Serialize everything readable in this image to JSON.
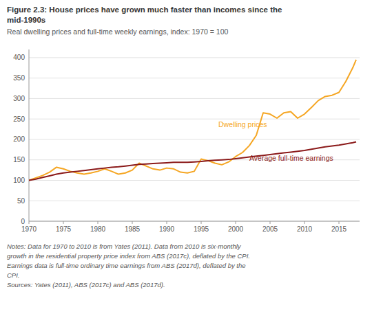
{
  "chart_data": {
    "type": "line",
    "title": [
      "Figure 2.3: House prices have grown much faster than incomes since the",
      "mid-1990s"
    ],
    "subtitle": "Real dwelling prices and full-time weekly earnings, index: 1970 = 100",
    "notes": [
      "Notes: Data for 1970 to 2010 is from Yates (2011). Data from 2010 is six-monthly",
      "growth in the residential property price index from ABS (2017c), deflated by the CPI.",
      "Earnings data is full-time ordinary time earnings from ABS (2017d), deflated by the",
      "CPI.",
      "Sources: Yates (2011), ABS (2017c) and ABS (2017d)."
    ],
    "x": [
      1970,
      1971,
      1972,
      1973,
      1974,
      1975,
      1976,
      1977,
      1978,
      1979,
      1980,
      1981,
      1982,
      1983,
      1984,
      1985,
      1986,
      1987,
      1988,
      1989,
      1990,
      1991,
      1992,
      1993,
      1994,
      1995,
      1996,
      1997,
      1998,
      1999,
      2000,
      2001,
      2002,
      2003,
      2004,
      2005,
      2006,
      2007,
      2008,
      2009,
      2010,
      2011,
      2012,
      2013,
      2014,
      2015,
      2016,
      2017,
      2017.5
    ],
    "series": [
      {
        "color": "#F5A623",
        "values": [
          100,
          106,
          112,
          120,
          132,
          128,
          122,
          118,
          115,
          118,
          122,
          128,
          122,
          115,
          118,
          125,
          142,
          135,
          128,
          125,
          130,
          128,
          120,
          118,
          122,
          152,
          148,
          142,
          138,
          145,
          158,
          168,
          185,
          210,
          265,
          262,
          252,
          265,
          268,
          252,
          262,
          278,
          295,
          305,
          308,
          315,
          342,
          375,
          395
        ]
      },
      {
        "color": "#8B1A1A",
        "values": [
          100,
          103,
          107,
          111,
          115,
          118,
          120,
          122,
          124,
          126,
          128,
          130,
          132,
          133,
          135,
          137,
          139,
          140,
          141,
          142,
          143,
          144,
          144,
          144,
          145,
          146,
          148,
          149,
          150,
          151,
          153,
          155,
          157,
          159,
          161,
          163,
          165,
          167,
          169,
          171,
          173,
          176,
          179,
          182,
          184,
          186,
          189,
          192,
          194
        ]
      }
    ],
    "annotations": [
      {
        "text": "Dwelling prices",
        "x": 1997.5,
        "y": 230,
        "color": "#F5A623"
      },
      {
        "text": "Average full-time earnings",
        "x": 2002.0,
        "y": 148,
        "color": "#8B1A1A"
      }
    ],
    "xlim": [
      1970,
      2018
    ],
    "ylim": [
      0,
      420
    ],
    "xticks": [
      1970,
      1975,
      1980,
      1985,
      1990,
      1995,
      2000,
      2005,
      2010,
      2015
    ],
    "yticks": [
      0,
      50,
      100,
      150,
      200,
      250,
      300,
      350,
      400
    ],
    "grid": true
  }
}
